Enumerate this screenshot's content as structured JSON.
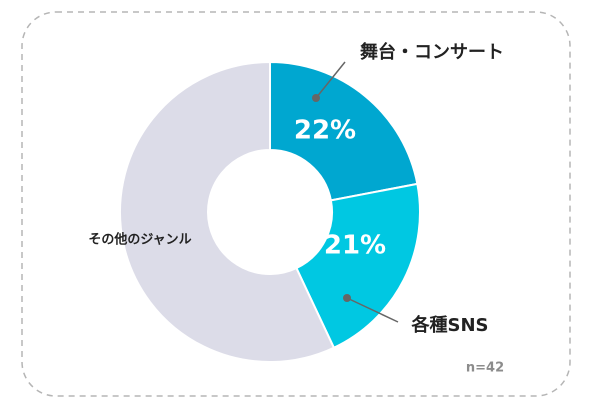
{
  "chart_data": {
    "type": "donut",
    "categories": [
      "舞台・コンサート",
      "各種SNS",
      "その他のジャンル"
    ],
    "values": [
      22,
      21,
      57
    ],
    "value_labels": [
      "22%",
      "21%",
      null
    ],
    "colors": [
      "#00a7d0",
      "#00c8e2",
      "#dcdce8"
    ],
    "note": "n=42"
  }
}
